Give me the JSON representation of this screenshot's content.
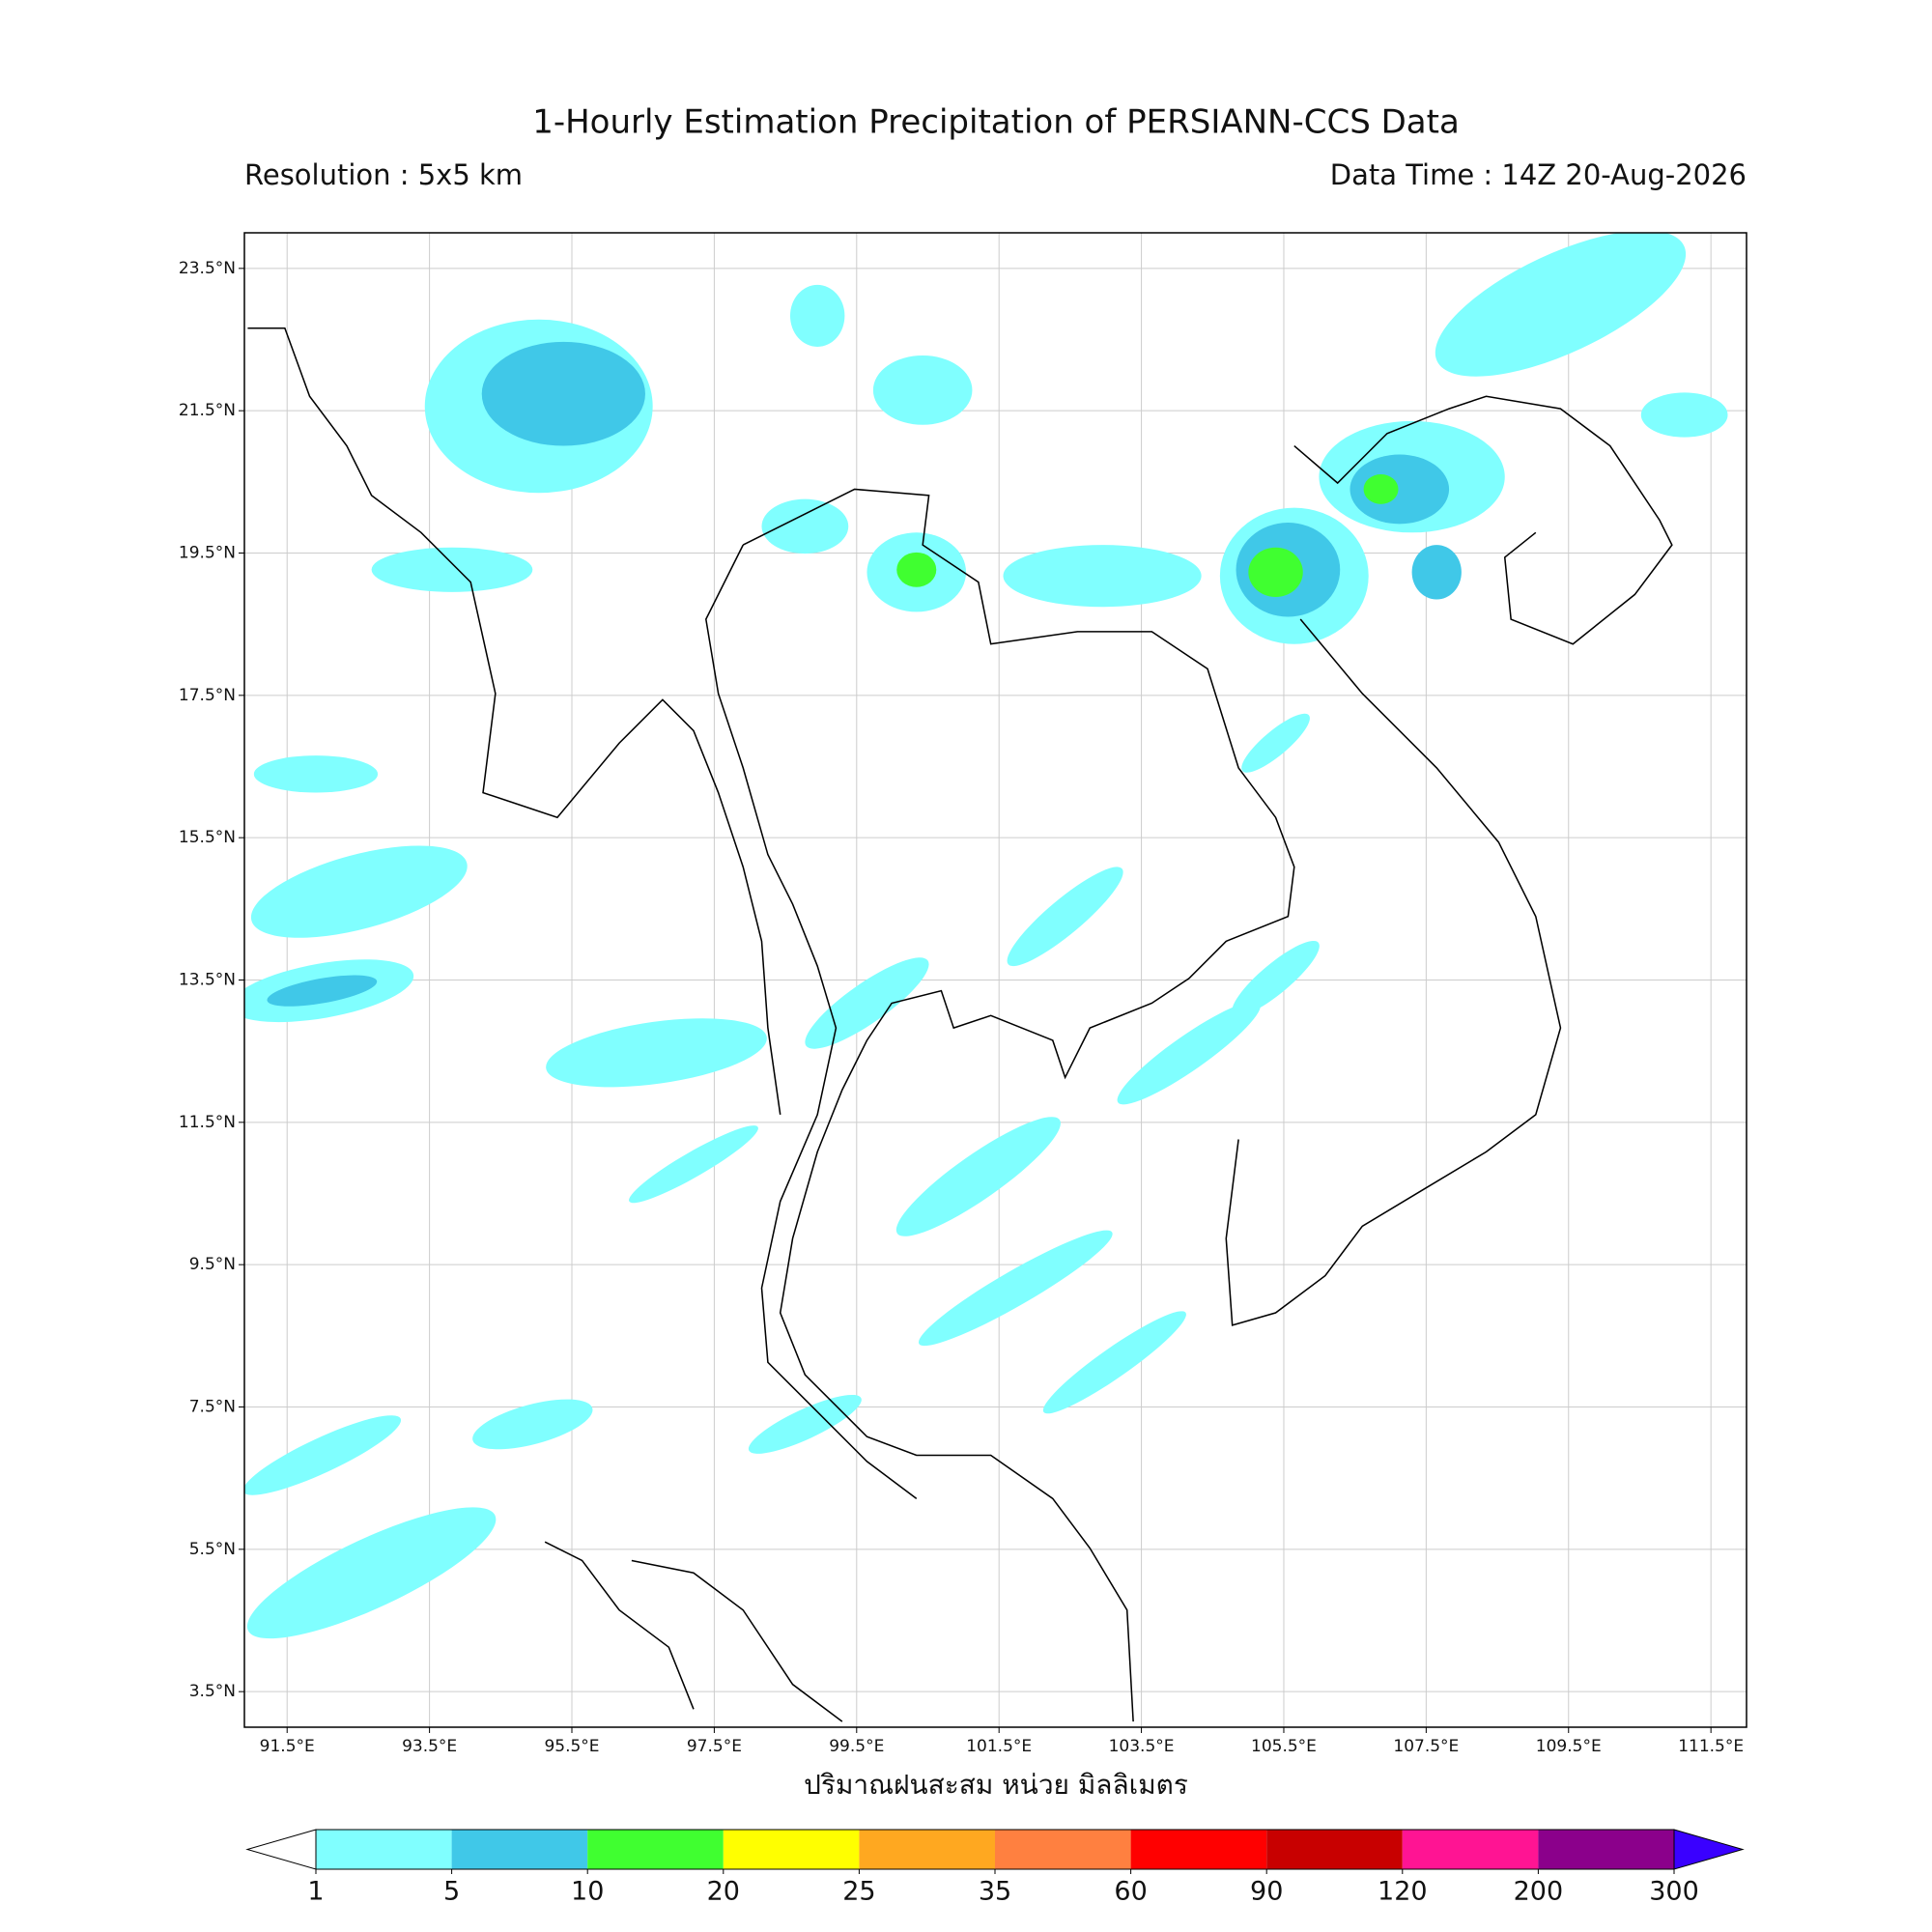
{
  "chart_data": {
    "type": "precipitation-map",
    "title": "1-Hourly Estimation Precipitation of PERSIANN-CCS Data",
    "subtitle_left": "Resolution : 5x5 km",
    "subtitle_right": "Data Time : 14Z 20-Aug-2026",
    "xlabel": "ปริมาณฝนสะสม หน่วย มิลลิเมตร",
    "xlim": [
      90.9,
      112.0
    ],
    "ylim": [
      3.0,
      24.0
    ],
    "xticks": [
      {
        "value": 91.5,
        "label": "91.5°E"
      },
      {
        "value": 93.5,
        "label": "93.5°E"
      },
      {
        "value": 95.5,
        "label": "95.5°E"
      },
      {
        "value": 97.5,
        "label": "97.5°E"
      },
      {
        "value": 99.5,
        "label": "99.5°E"
      },
      {
        "value": 101.5,
        "label": "101.5°E"
      },
      {
        "value": 103.5,
        "label": "103.5°E"
      },
      {
        "value": 105.5,
        "label": "105.5°E"
      },
      {
        "value": 107.5,
        "label": "107.5°E"
      },
      {
        "value": 109.5,
        "label": "109.5°E"
      },
      {
        "value": 111.5,
        "label": "111.5°E"
      }
    ],
    "yticks": [
      {
        "value": 3.5,
        "label": "3.5°N"
      },
      {
        "value": 5.5,
        "label": "5.5°N"
      },
      {
        "value": 7.5,
        "label": "7.5°N"
      },
      {
        "value": 9.5,
        "label": "9.5°N"
      },
      {
        "value": 11.5,
        "label": "11.5°N"
      },
      {
        "value": 13.5,
        "label": "13.5°N"
      },
      {
        "value": 15.5,
        "label": "15.5°N"
      },
      {
        "value": 17.5,
        "label": "17.5°N"
      },
      {
        "value": 19.5,
        "label": "19.5°N"
      },
      {
        "value": 21.5,
        "label": "21.5°N"
      },
      {
        "value": 23.5,
        "label": "23.5°N"
      }
    ],
    "grid": true,
    "colorbar": {
      "levels": [
        1,
        5,
        10,
        20,
        25,
        35,
        60,
        90,
        120,
        200,
        300
      ],
      "colors": [
        "#80ffff",
        "#40c8e8",
        "#40ff30",
        "#ffff00",
        "#ffa820",
        "#ff8040",
        "#ff0000",
        "#c80000",
        "#ff1493",
        "#8b008b"
      ],
      "under_color": "#ffffff",
      "over_color": "#3a00ff"
    }
  }
}
